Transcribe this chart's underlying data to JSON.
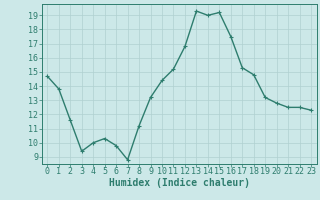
{
  "x": [
    0,
    1,
    2,
    3,
    4,
    5,
    6,
    7,
    8,
    9,
    10,
    11,
    12,
    13,
    14,
    15,
    16,
    17,
    18,
    19,
    20,
    21,
    22,
    23
  ],
  "y": [
    14.7,
    13.8,
    11.6,
    9.4,
    10.0,
    10.3,
    9.8,
    8.8,
    11.2,
    13.2,
    14.4,
    15.2,
    16.8,
    19.3,
    19.0,
    19.2,
    17.5,
    15.3,
    14.8,
    13.2,
    12.8,
    12.5,
    12.5,
    12.3
  ],
  "line_color": "#2e7d6e",
  "marker": "+",
  "marker_size": 3.5,
  "bg_color": "#cce8e8",
  "grid_color": "#b0d0d0",
  "tick_color": "#2e7d6e",
  "xlabel": "Humidex (Indice chaleur)",
  "xlim": [
    -0.5,
    23.5
  ],
  "ylim": [
    8.5,
    19.8
  ],
  "yticks": [
    9,
    10,
    11,
    12,
    13,
    14,
    15,
    16,
    17,
    18,
    19
  ],
  "xticks": [
    0,
    1,
    2,
    3,
    4,
    5,
    6,
    7,
    8,
    9,
    10,
    11,
    12,
    13,
    14,
    15,
    16,
    17,
    18,
    19,
    20,
    21,
    22,
    23
  ],
  "xlabel_fontsize": 7,
  "tick_fontsize": 6,
  "line_width": 1.0
}
